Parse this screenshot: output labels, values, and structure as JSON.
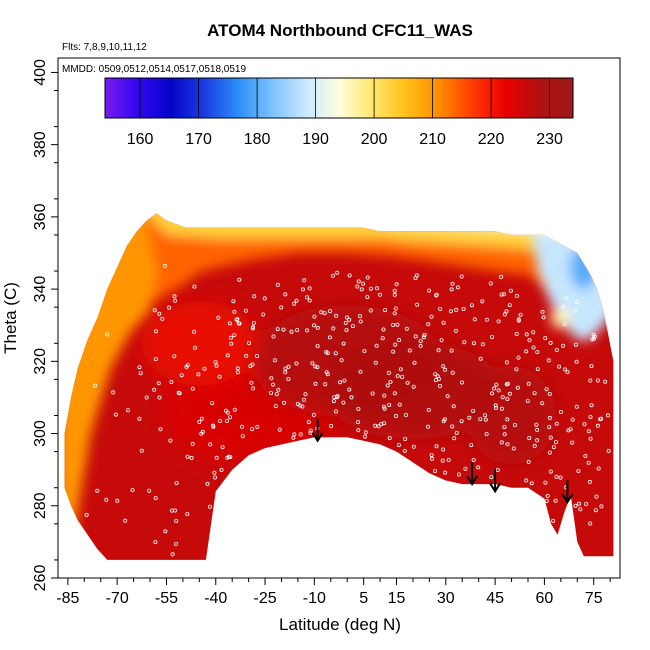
{
  "chart_data": {
    "type": "heatmap",
    "title": "ATOM4 Northbound CFC11_WAS",
    "annotations": [
      "Flts: 7,8,9,10,11,12",
      "MMDD: 0509,0512,0514,0517,0518,0519"
    ],
    "xlabel": "Latitude (deg N)",
    "ylabel": "Theta (C)",
    "xlim": [
      -88,
      83
    ],
    "ylim": [
      260,
      404
    ],
    "x_ticks": [
      -85,
      -70,
      -55,
      -40,
      -25,
      -10,
      5,
      15,
      30,
      45,
      60,
      75
    ],
    "x_tick_labels": [
      "-85",
      "-70",
      "-55",
      "-40",
      "-25",
      "-10",
      "5",
      "15",
      "30",
      "45",
      "60",
      "75"
    ],
    "y_ticks": [
      260,
      280,
      300,
      320,
      340,
      360,
      380,
      400
    ],
    "y_tick_labels": [
      "260",
      "280",
      "300",
      "320",
      "340",
      "360",
      "380",
      "400"
    ],
    "colorbar": {
      "range": [
        154,
        234
      ],
      "ticks": [
        160,
        170,
        180,
        190,
        200,
        210,
        220,
        230
      ],
      "tick_labels": [
        "160",
        "170",
        "180",
        "190",
        "200",
        "210",
        "220",
        "230"
      ],
      "colors": [
        "#7a1cf0",
        "#2f06ef",
        "#0505c8",
        "#1b3fe4",
        "#2c8ef7",
        "#7cc2fd",
        "#c9e8ff",
        "#fffde0",
        "#ffe86b",
        "#ffbf1a",
        "#ff8c00",
        "#ff3a00",
        "#e80000",
        "#b01010",
        "#9c1a1a"
      ],
      "position": "top"
    },
    "envelope": {
      "lat": [
        -86,
        -84,
        -82,
        -79,
        -76,
        -73,
        -70,
        -67,
        -64,
        -61,
        -58,
        -55,
        -52,
        -49,
        -46,
        -43,
        -40,
        -35,
        -30,
        -25,
        -20,
        -15,
        -10,
        -5,
        0,
        5,
        10,
        15,
        20,
        25,
        30,
        35,
        40,
        45,
        50,
        55,
        60,
        62,
        64,
        66,
        68,
        70,
        72,
        74,
        76,
        78,
        81
      ],
      "theta_bottom": [
        285,
        280,
        276,
        272,
        268,
        265,
        265,
        265,
        265,
        265,
        265,
        265,
        265,
        265,
        265,
        265,
        284,
        290,
        294,
        296,
        297,
        298,
        299,
        299,
        299,
        298,
        297,
        295,
        292,
        289,
        287,
        286,
        286,
        286,
        285,
        285,
        282,
        275,
        272,
        278,
        283,
        270,
        266,
        266,
        266,
        266,
        266
      ],
      "theta_top": [
        300,
        310,
        318,
        326,
        332,
        340,
        346,
        352,
        356,
        359,
        361,
        359,
        358,
        357,
        357,
        357,
        357,
        357,
        357,
        357,
        357,
        357,
        357,
        357,
        357,
        357,
        356,
        356,
        356,
        356,
        356,
        356,
        356,
        356,
        355,
        355,
        355,
        354,
        353,
        352,
        351,
        350,
        347,
        344,
        340,
        334,
        320
      ]
    },
    "colored_regions": [
      {
        "name": "upper-band-orange",
        "value_approx": 212
      },
      {
        "name": "core-red",
        "value_approx": 226
      },
      {
        "name": "polar-northern-upper-blue",
        "value_approx": 185
      },
      {
        "name": "southern-upper-yellow",
        "value_approx": 208
      }
    ],
    "arrows_lat": [
      -9,
      38,
      45,
      67
    ],
    "arrows_theta_tip": [
      298,
      286,
      284,
      281
    ]
  }
}
